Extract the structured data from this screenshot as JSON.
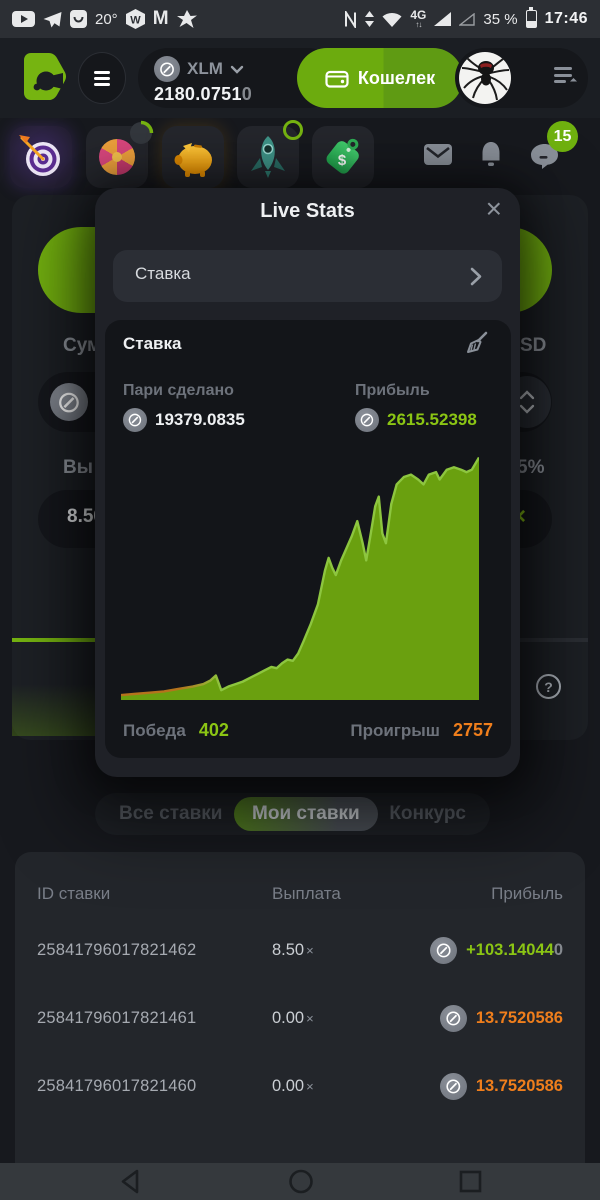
{
  "colors": {
    "accent_green": "#76b411",
    "text_green": "#8bc514",
    "orange": "#ef7e1c",
    "modal_bg": "#1f2127",
    "panel_bg": "#131519"
  },
  "icons": {
    "coin_glyph": "⊘",
    "question_glyph": "?"
  },
  "status_bar": {
    "temperature": "20°",
    "network": "4G",
    "battery_percent": "35 %",
    "time": "17:46"
  },
  "header": {
    "currency": "XLM",
    "balance": "2180.0751",
    "balance_dim": "0",
    "wallet_label": "Кошелек"
  },
  "notifications": {
    "chat_badge": "15"
  },
  "live_stats": {
    "title": "Live Stats",
    "close_symbol": "×",
    "filter_label": "Ставка",
    "panel": {
      "title": "Ставка",
      "bets_made_label": "Пари сделано",
      "bets_made_value": "19379.0835",
      "profit_label": "Прибыль",
      "profit_value": "2615.52398",
      "wins_label": "Победа",
      "wins_value": "402",
      "losses_label": "Проигрыш",
      "losses_value": "2757"
    }
  },
  "chart_data": {
    "type": "area",
    "title": "",
    "xlabel": "",
    "ylabel": "",
    "x_range": [
      0,
      100
    ],
    "ylim": [
      0,
      100
    ],
    "grid": false,
    "legend": "none",
    "fill_color": "#6aa00f",
    "line_color": "#8dc63f",
    "line_start_color": "#b5731c",
    "points": [
      [
        0,
        2
      ],
      [
        4,
        2.5
      ],
      [
        8,
        3
      ],
      [
        12,
        3.5
      ],
      [
        16,
        4.5
      ],
      [
        20,
        5.5
      ],
      [
        23,
        6.5
      ],
      [
        25,
        8
      ],
      [
        26.5,
        10
      ],
      [
        28,
        4
      ],
      [
        30,
        5.5
      ],
      [
        32,
        6.5
      ],
      [
        34,
        7.5
      ],
      [
        36,
        9
      ],
      [
        38,
        10.5
      ],
      [
        40,
        12
      ],
      [
        42,
        13.5
      ],
      [
        43.5,
        13
      ],
      [
        45,
        15
      ],
      [
        46.5,
        16.5
      ],
      [
        48,
        16
      ],
      [
        49.5,
        19
      ],
      [
        51,
        24
      ],
      [
        53,
        31
      ],
      [
        55,
        39
      ],
      [
        56,
        46
      ],
      [
        57,
        53
      ],
      [
        58,
        58
      ],
      [
        59,
        54
      ],
      [
        60,
        51
      ],
      [
        61.5,
        57
      ],
      [
        63,
        62
      ],
      [
        64.5,
        67
      ],
      [
        66,
        73
      ],
      [
        67.5,
        64
      ],
      [
        68.5,
        57
      ],
      [
        70,
        70
      ],
      [
        71,
        79
      ],
      [
        72,
        83
      ],
      [
        73,
        68
      ],
      [
        74,
        64
      ],
      [
        75.5,
        80
      ],
      [
        77,
        88
      ],
      [
        79,
        91
      ],
      [
        81,
        92
      ],
      [
        83,
        90
      ],
      [
        84.5,
        88
      ],
      [
        86,
        92
      ],
      [
        88,
        93
      ],
      [
        89,
        90
      ],
      [
        91,
        94
      ],
      [
        93,
        95
      ],
      [
        95,
        94
      ],
      [
        96.5,
        93
      ],
      [
        98,
        94
      ],
      [
        100,
        99
      ]
    ]
  },
  "game_panel": {
    "amount_label_fragment": "Сум",
    "currency_fragment": "SD",
    "payout_label_fragment": "Вы",
    "chance_fragment": "5%",
    "payout_value": "8.50",
    "clear_symbol": "×"
  },
  "tabs": [
    {
      "label": "Все ставки",
      "active": false
    },
    {
      "label": "Мои ставки",
      "active": true
    },
    {
      "label": "Конкурс",
      "active": false
    }
  ],
  "bets_table": {
    "columns": [
      "ID ставки",
      "Выплата",
      "Прибыль"
    ],
    "rows": [
      {
        "id": "25841796017821462",
        "payout": "8.50",
        "mult": "×",
        "profit": "+103.14044",
        "profit_dim": "0",
        "direction": "win"
      },
      {
        "id": "25841796017821461",
        "payout": "0.00",
        "mult": "×",
        "profit": "13.7520586",
        "profit_dim": "",
        "direction": "loss"
      },
      {
        "id": "25841796017821460",
        "payout": "0.00",
        "mult": "×",
        "profit": "13.7520586",
        "profit_dim": "",
        "direction": "loss"
      }
    ]
  }
}
